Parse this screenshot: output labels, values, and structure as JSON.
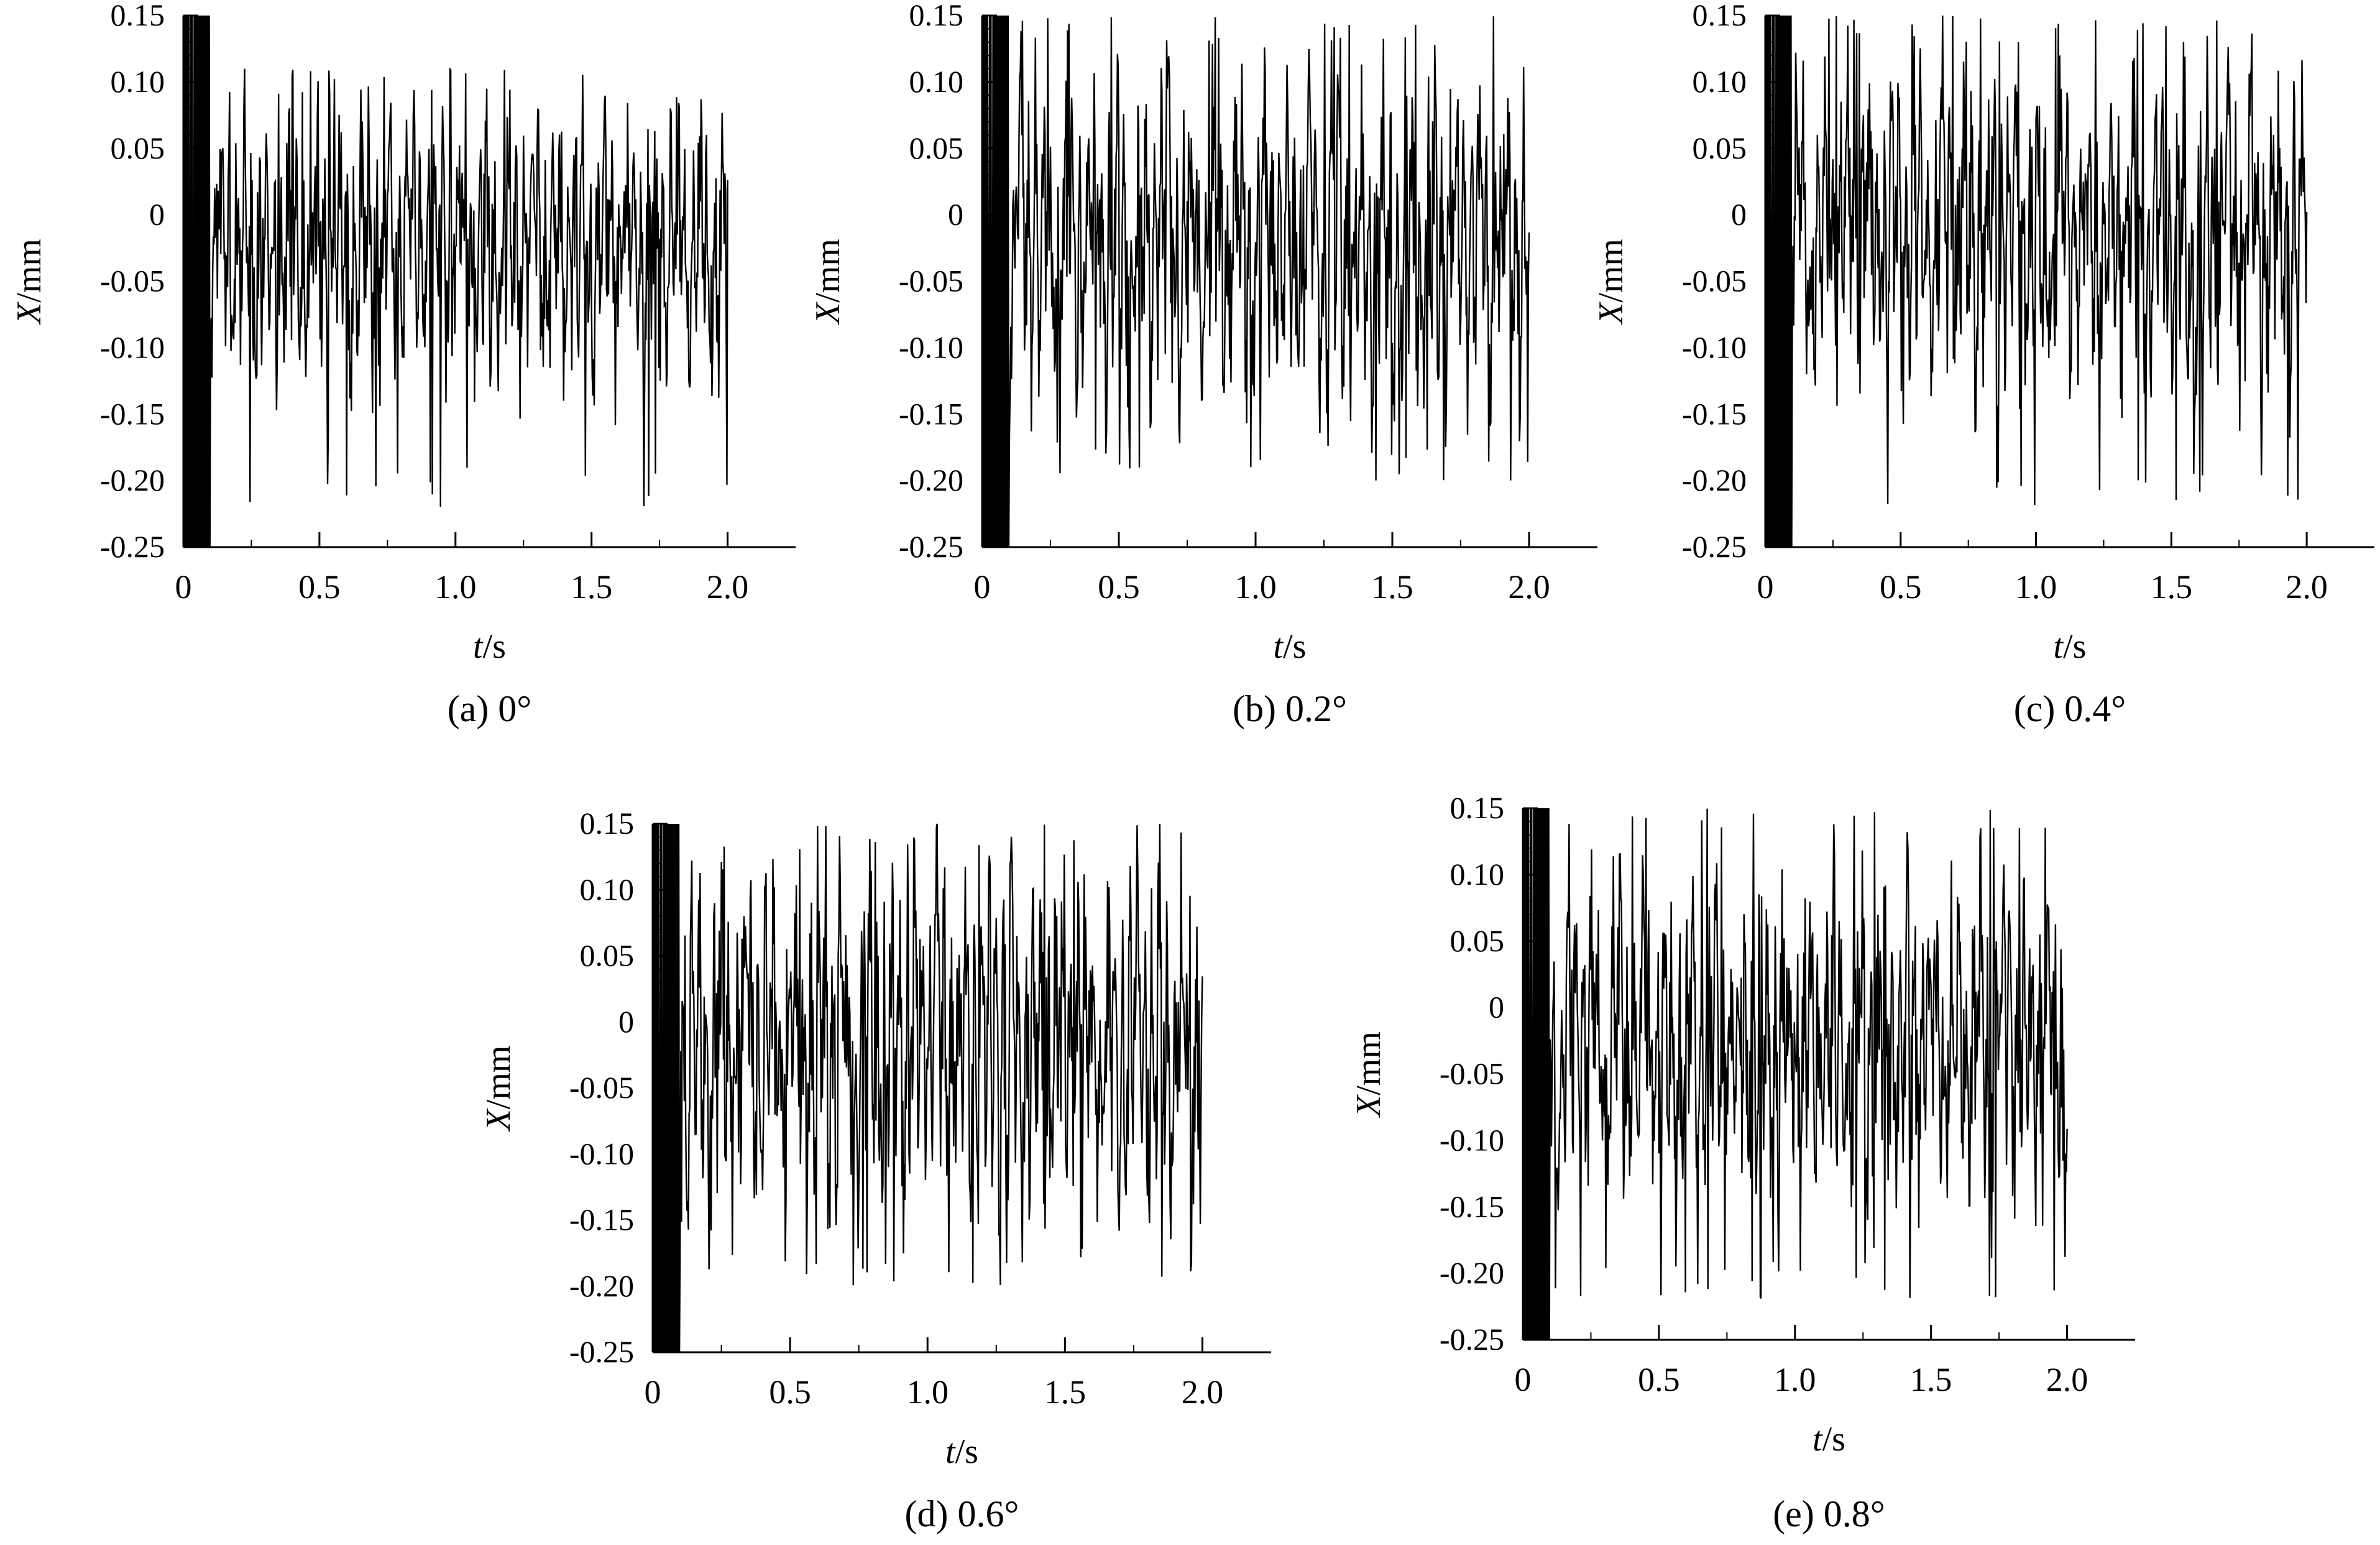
{
  "chart_data": [
    {
      "type": "line",
      "caption": "(a)  0°",
      "xlabel": "t/s",
      "ylabel": "X/mm",
      "xlim": [
        0,
        2.25
      ],
      "ylim": [
        -0.25,
        0.15
      ],
      "xticks": [
        "0",
        "0.5",
        "1.0",
        "1.5",
        "2.0"
      ],
      "yticks": [
        "0.15",
        "0.10",
        "0.05",
        "0",
        "-0.05",
        "-0.10",
        "-0.15",
        "-0.20",
        "-0.25"
      ],
      "series": [
        {
          "x_start": 0,
          "x_end": 2.0,
          "transient_end": 0.1,
          "upper": 0.09,
          "lower": -0.14,
          "min": -0.22,
          "max": 0.11,
          "seed": 11
        }
      ]
    },
    {
      "type": "line",
      "caption": "(b)  0.2°",
      "xlabel": "t/s",
      "ylabel": "X/mm",
      "xlim": [
        0,
        2.25
      ],
      "ylim": [
        -0.25,
        0.15
      ],
      "xticks": [
        "0",
        "0.5",
        "1.0",
        "1.5",
        "2.0"
      ],
      "yticks": [
        "0.15",
        "0.10",
        "0.05",
        "0",
        "-0.05",
        "-0.10",
        "-0.15",
        "-0.20",
        "-0.25"
      ],
      "series": [
        {
          "x_start": 0,
          "x_end": 2.0,
          "transient_end": 0.1,
          "upper": 0.11,
          "lower": -0.15,
          "min": -0.2,
          "max": 0.15,
          "seed": 23
        }
      ]
    },
    {
      "type": "line",
      "caption": "(c)  0.4°",
      "xlabel": "t/s",
      "ylabel": "X/mm",
      "xlim": [
        0,
        2.25
      ],
      "ylim": [
        -0.25,
        0.15
      ],
      "xticks": [
        "0",
        "0.5",
        "1.0",
        "1.5",
        "2.0"
      ],
      "yticks": [
        "0.15",
        "0.10",
        "0.05",
        "0",
        "-0.05",
        "-0.10",
        "-0.15",
        "-0.20",
        "-0.25"
      ],
      "series": [
        {
          "x_start": 0,
          "x_end": 2.0,
          "transient_end": 0.1,
          "upper": 0.12,
          "lower": -0.15,
          "min": -0.22,
          "max": 0.15,
          "seed": 37
        }
      ]
    },
    {
      "type": "line",
      "caption": "(d)  0.6°",
      "xlabel": "t/s",
      "ylabel": "X/mm",
      "xlim": [
        0,
        2.25
      ],
      "ylim": [
        -0.25,
        0.15
      ],
      "xticks": [
        "0",
        "0.5",
        "1.0",
        "1.5",
        "2.0"
      ],
      "yticks": [
        "0.15",
        "0.10",
        "0.05",
        "0",
        "-0.05",
        "-0.10",
        "-0.15",
        "-0.20",
        "-0.25"
      ],
      "series": [
        {
          "x_start": 0,
          "x_end": 2.0,
          "transient_end": 0.1,
          "upper": 0.13,
          "lower": -0.16,
          "min": -0.2,
          "max": 0.15,
          "seed": 53
        }
      ]
    },
    {
      "type": "line",
      "caption": "(e)  0.8°",
      "xlabel": "t/s",
      "ylabel": "X/mm",
      "xlim": [
        0,
        2.25
      ],
      "ylim": [
        -0.25,
        0.15
      ],
      "xticks": [
        "0",
        "0.5",
        "1.0",
        "1.5",
        "2.0"
      ],
      "yticks": [
        "0.15",
        "0.10",
        "0.05",
        "0",
        "-0.05",
        "-0.10",
        "-0.15",
        "-0.20",
        "-0.25"
      ],
      "series": [
        {
          "x_start": 0,
          "x_end": 2.0,
          "transient_end": 0.1,
          "upper": 0.11,
          "lower": -0.16,
          "min": -0.22,
          "max": 0.15,
          "seed": 71
        }
      ]
    }
  ],
  "colors": {
    "line": "#000000",
    "axis": "#000000",
    "background": "#ffffff"
  }
}
